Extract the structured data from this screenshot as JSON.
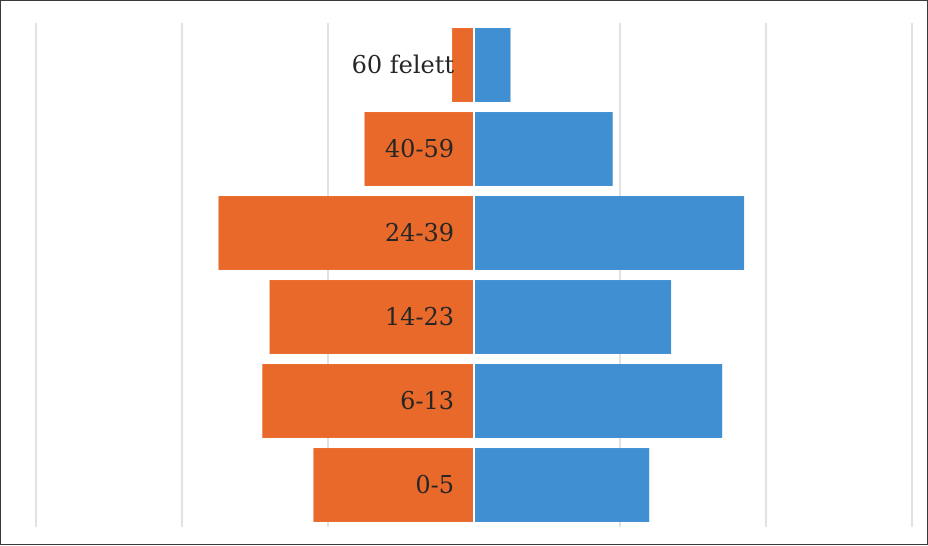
{
  "chart_data": {
    "type": "bar",
    "orientation": "horizontal",
    "layout": "population-pyramid",
    "categories": [
      "60 felett",
      "40-59",
      "24-39",
      "14-23",
      "6-13",
      "0-5"
    ],
    "series": [
      {
        "values": [
          -1.5,
          -7.5,
          -17.5,
          -14.0,
          -14.5,
          -11.0
        ],
        "color": "#E8692A"
      },
      {
        "values": [
          2.5,
          9.5,
          18.5,
          13.5,
          17.0,
          12.0
        ],
        "color": "#3F8FD2"
      }
    ],
    "xlim": [
      -30,
      30
    ],
    "grid": true,
    "legend": "none"
  }
}
